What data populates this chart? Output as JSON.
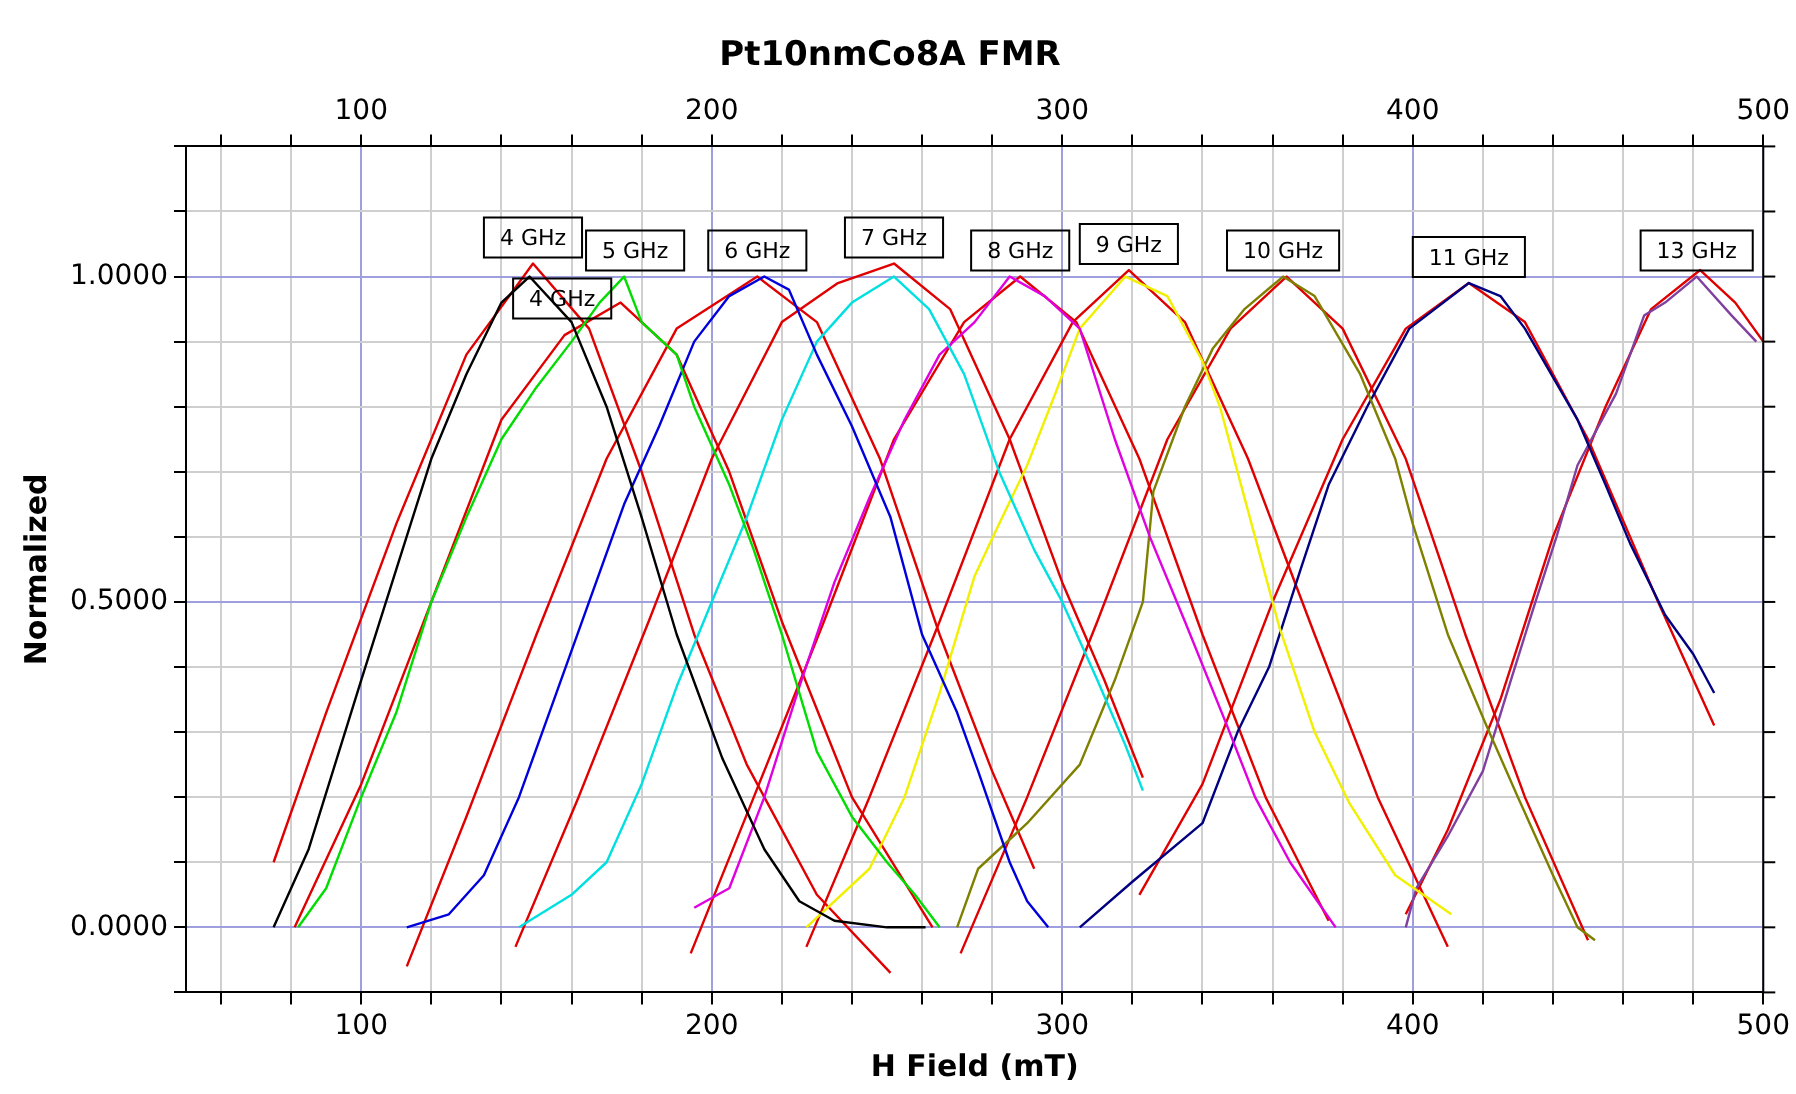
{
  "chart_data": {
    "type": "line",
    "title": "Pt10nmCo8A FMR",
    "xlabel": "H Field (mT)",
    "ylabel": "Normalized",
    "xlim": [
      50,
      500
    ],
    "ylim": [
      -0.1,
      1.2
    ],
    "xticks": [
      {
        "value": 60,
        "label": null
      },
      {
        "value": 80,
        "label": null
      },
      100,
      {
        "value": 120,
        "label": null
      },
      {
        "value": 140,
        "label": null
      },
      {
        "value": 160,
        "label": null
      },
      {
        "value": 180,
        "label": null
      },
      200,
      {
        "value": 220,
        "label": null
      },
      {
        "value": 240,
        "label": null
      },
      {
        "value": 260,
        "label": null
      },
      {
        "value": 280,
        "label": null
      },
      300,
      {
        "value": 320,
        "label": null
      },
      {
        "value": 340,
        "label": null
      },
      {
        "value": 360,
        "label": null
      },
      {
        "value": 380,
        "label": null
      },
      400,
      {
        "value": 420,
        "label": null
      },
      {
        "value": 440,
        "label": null
      },
      {
        "value": 460,
        "label": null
      },
      {
        "value": 480,
        "label": null
      },
      500
    ],
    "x2lim": [
      50,
      500
    ],
    "x2ticks": [
      {
        "value": 60,
        "label": null
      },
      {
        "value": 80,
        "label": null
      },
      100,
      {
        "value": 120,
        "label": null
      },
      {
        "value": 140,
        "label": null
      },
      {
        "value": 160,
        "label": null
      },
      {
        "value": 180,
        "label": null
      },
      200,
      {
        "value": 220,
        "label": null
      },
      {
        "value": 240,
        "label": null
      },
      {
        "value": 260,
        "label": null
      },
      {
        "value": 280,
        "label": null
      },
      300,
      {
        "value": 320,
        "label": null
      },
      {
        "value": 340,
        "label": null
      },
      {
        "value": 360,
        "label": null
      },
      {
        "value": 380,
        "label": null
      },
      400,
      {
        "value": 420,
        "label": null
      },
      {
        "value": 440,
        "label": null
      },
      {
        "value": 460,
        "label": null
      },
      {
        "value": 480,
        "label": null
      },
      500
    ],
    "yticks": [
      {
        "value": -0.1,
        "label": null
      },
      {
        "value": 0,
        "label": "0.0000"
      },
      {
        "value": 0.1,
        "label": null
      },
      {
        "value": 0.2,
        "label": null
      },
      {
        "value": 0.3,
        "label": null
      },
      {
        "value": 0.4,
        "label": null
      },
      {
        "value": 0.5,
        "label": "0.5000"
      },
      {
        "value": 0.6,
        "label": null
      },
      {
        "value": 0.7,
        "label": null
      },
      {
        "value": 0.8,
        "label": null
      },
      {
        "value": 0.9,
        "label": null
      },
      {
        "value": 1,
        "label": "1.0000"
      },
      {
        "value": 1.1,
        "label": null
      },
      {
        "value": 1.2,
        "label": null
      }
    ],
    "grid": true,
    "legend": false,
    "marker": "none",
    "line_style": "solid",
    "annotations": [
      {
        "text": "4 GHz",
        "x": 149,
        "y": 1.02
      },
      {
        "text": "4 GHz",
        "x": 148,
        "y": 1.0
      },
      {
        "text": "5 GHz",
        "x": 175,
        "y": 1.0
      },
      {
        "text": "6 GHz",
        "x": 213,
        "y": 1.0
      },
      {
        "text": "7 GHz",
        "x": 252,
        "y": 1.02
      },
      {
        "text": "8 GHz",
        "x": 288,
        "y": 1.0
      },
      {
        "text": "9 GHz",
        "x": 319,
        "y": 1.01
      },
      {
        "text": "10 GHz",
        "x": 363,
        "y": 1.0
      },
      {
        "text": "11 GHz",
        "x": 416,
        "y": 0.99
      },
      {
        "text": "13 GHz",
        "x": 481,
        "y": 1.0
      }
    ],
    "series": [
      {
        "type": "line",
        "color": "#000000",
        "x": [
          75,
          85,
          100,
          110,
          120,
          130,
          140,
          148,
          160,
          170,
          180,
          190,
          203,
          215,
          225,
          235,
          250,
          261
        ],
        "values": [
          0,
          0.12,
          0.38,
          0.55,
          0.72,
          0.85,
          0.96,
          1.0,
          0.93,
          0.8,
          0.63,
          0.45,
          0.26,
          0.12,
          0.04,
          0.01,
          0,
          0
        ]
      },
      {
        "type": "line",
        "color": "#00dd00",
        "x": [
          82,
          90,
          100,
          110,
          120,
          130,
          140,
          150,
          160,
          168,
          175,
          180,
          190,
          195,
          205,
          212,
          220,
          230,
          240,
          250,
          258,
          265
        ],
        "values": [
          0,
          0.06,
          0.2,
          0.33,
          0.5,
          0.63,
          0.75,
          0.83,
          0.9,
          0.96,
          1.0,
          0.93,
          0.88,
          0.8,
          0.68,
          0.58,
          0.45,
          0.27,
          0.17,
          0.1,
          0.05,
          0
        ]
      },
      {
        "type": "line",
        "color": "#0000dd",
        "x": [
          113,
          125,
          135,
          145,
          155,
          165,
          175,
          185,
          195,
          205,
          215,
          222,
          230,
          240,
          251,
          260,
          270,
          276,
          285,
          290,
          296
        ],
        "values": [
          0,
          0.02,
          0.08,
          0.2,
          0.35,
          0.5,
          0.65,
          0.77,
          0.9,
          0.97,
          1.0,
          0.98,
          0.88,
          0.77,
          0.63,
          0.45,
          0.33,
          0.24,
          0.1,
          0.04,
          0
        ]
      },
      {
        "type": "line",
        "color": "#00e0e0",
        "x": [
          145,
          160,
          170,
          180,
          190,
          200,
          210,
          220,
          230,
          240,
          252,
          262,
          272,
          282,
          292,
          300,
          310,
          318,
          323
        ],
        "values": [
          0,
          0.05,
          0.1,
          0.22,
          0.37,
          0.5,
          0.63,
          0.78,
          0.9,
          0.96,
          1.0,
          0.95,
          0.85,
          0.7,
          0.58,
          0.5,
          0.38,
          0.28,
          0.21
        ]
      },
      {
        "type": "line",
        "color": "#e000e0",
        "x": [
          195,
          205,
          215,
          225,
          235,
          245,
          255,
          265,
          275,
          285,
          295,
          305,
          315,
          325,
          335,
          347,
          355,
          365,
          378
        ],
        "values": [
          0.03,
          0.06,
          0.2,
          0.37,
          0.53,
          0.66,
          0.78,
          0.88,
          0.93,
          1.0,
          0.97,
          0.92,
          0.75,
          0.6,
          0.47,
          0.31,
          0.2,
          0.1,
          0
        ]
      },
      {
        "type": "line",
        "color": "#f0f000",
        "x": [
          227,
          245,
          255,
          265,
          275,
          282,
          290,
          298,
          305,
          318,
          330,
          340,
          345,
          352,
          362,
          372,
          382,
          395,
          411
        ],
        "values": [
          0,
          0.09,
          0.2,
          0.36,
          0.54,
          0.62,
          0.71,
          0.82,
          0.92,
          1.0,
          0.97,
          0.87,
          0.8,
          0.66,
          0.46,
          0.3,
          0.19,
          0.08,
          0.02
        ]
      },
      {
        "type": "line",
        "color": "#808000",
        "x": [
          270,
          276,
          290,
          305,
          315,
          323,
          326,
          335,
          343,
          352,
          363,
          372,
          385,
          395,
          400,
          410,
          421,
          430,
          440,
          447,
          452
        ],
        "values": [
          0,
          0.09,
          0.16,
          0.25,
          0.38,
          0.5,
          0.67,
          0.8,
          0.89,
          0.95,
          1.0,
          0.97,
          0.85,
          0.72,
          0.62,
          0.45,
          0.31,
          0.2,
          0.08,
          0,
          -0.02
        ]
      },
      {
        "type": "line",
        "color": "#000080",
        "x": [
          305,
          320,
          340,
          350,
          359,
          368,
          376,
          387,
          399,
          416,
          425,
          432,
          447,
          455,
          462,
          472,
          480,
          486
        ],
        "values": [
          0,
          0.07,
          0.16,
          0.3,
          0.4,
          0.55,
          0.68,
          0.8,
          0.92,
          0.99,
          0.97,
          0.92,
          0.78,
          0.68,
          0.59,
          0.48,
          0.42,
          0.36
        ]
      },
      {
        "type": "line",
        "color": "#8040a0",
        "x": [
          398,
          401,
          410,
          420,
          428,
          435,
          441,
          447,
          458,
          466,
          472,
          481,
          491,
          498
        ],
        "values": [
          0,
          0.06,
          0.14,
          0.24,
          0.38,
          0.5,
          0.6,
          0.71,
          0.82,
          0.94,
          0.96,
          1.0,
          0.94,
          0.9
        ]
      },
      {
        "type": "line",
        "color": "#e00000",
        "x": [
          75,
          90,
          110,
          130,
          149,
          165,
          180,
          195,
          210,
          230,
          251
        ],
        "values": [
          0.1,
          0.33,
          0.62,
          0.88,
          1.02,
          0.92,
          0.7,
          0.45,
          0.25,
          0.05,
          -0.07
        ]
      },
      {
        "type": "line",
        "color": "#e00000",
        "x": [
          81,
          100,
          120,
          140,
          158,
          174,
          190,
          205,
          220,
          240,
          263
        ],
        "values": [
          0,
          0.22,
          0.5,
          0.78,
          0.91,
          0.96,
          0.88,
          0.7,
          0.47,
          0.2,
          0
        ]
      },
      {
        "type": "line",
        "color": "#e00000",
        "x": [
          113,
          130,
          150,
          170,
          190,
          213,
          230,
          248,
          265,
          280,
          292
        ],
        "values": [
          -0.06,
          0.17,
          0.45,
          0.72,
          0.92,
          1.0,
          0.93,
          0.72,
          0.45,
          0.24,
          0.09
        ]
      },
      {
        "type": "line",
        "color": "#e00000",
        "x": [
          144,
          162,
          182,
          200,
          220,
          236,
          252,
          268,
          285,
          300,
          312,
          323
        ],
        "values": [
          -0.03,
          0.2,
          0.47,
          0.72,
          0.93,
          0.99,
          1.02,
          0.95,
          0.75,
          0.53,
          0.38,
          0.23
        ]
      },
      {
        "type": "line",
        "color": "#e00000",
        "x": [
          194,
          212,
          232,
          252,
          272,
          288,
          304,
          322,
          340,
          358,
          376
        ],
        "values": [
          -0.04,
          0.2,
          0.47,
          0.75,
          0.93,
          1.0,
          0.93,
          0.72,
          0.45,
          0.2,
          0.01
        ]
      },
      {
        "type": "line",
        "color": "#e00000",
        "x": [
          227,
          245,
          265,
          285,
          303,
          319,
          335,
          353,
          372,
          390,
          410
        ],
        "values": [
          -0.03,
          0.2,
          0.47,
          0.75,
          0.93,
          1.01,
          0.93,
          0.72,
          0.45,
          0.2,
          -0.03
        ]
      },
      {
        "type": "line",
        "color": "#e00000",
        "x": [
          271,
          290,
          310,
          330,
          348,
          364,
          380,
          398,
          415,
          432,
          450
        ],
        "values": [
          -0.04,
          0.2,
          0.47,
          0.75,
          0.92,
          1.0,
          0.92,
          0.72,
          0.45,
          0.2,
          -0.02
        ]
      },
      {
        "type": "line",
        "color": "#e00000",
        "x": [
          322,
          340,
          360,
          380,
          398,
          416,
          432,
          450,
          470,
          486
        ],
        "values": [
          0.05,
          0.22,
          0.5,
          0.75,
          0.92,
          0.99,
          0.93,
          0.75,
          0.5,
          0.31
        ]
      },
      {
        "type": "line",
        "color": "#e00000",
        "x": [
          398,
          410,
          425,
          440,
          455,
          468,
          482,
          492,
          500
        ],
        "values": [
          0.02,
          0.15,
          0.35,
          0.6,
          0.8,
          0.95,
          1.01,
          0.96,
          0.9
        ]
      }
    ]
  }
}
